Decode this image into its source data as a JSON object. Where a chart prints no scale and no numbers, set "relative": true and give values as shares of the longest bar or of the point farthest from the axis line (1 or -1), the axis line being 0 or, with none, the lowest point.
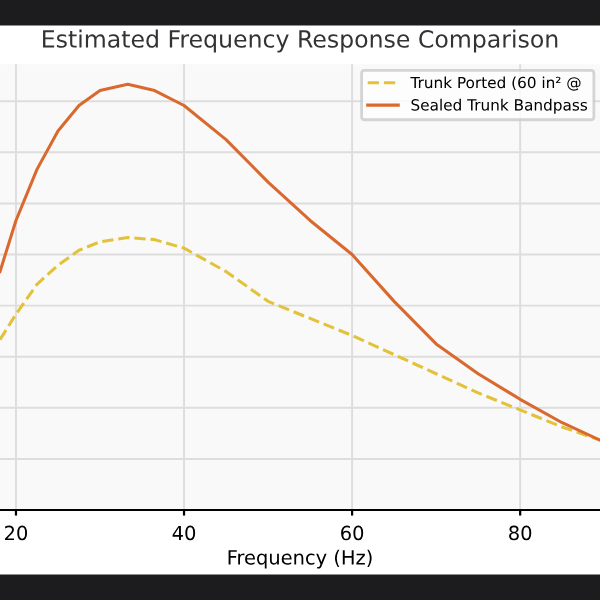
{
  "chart_data": {
    "type": "line",
    "title": "Estimated Frequency Response Comparison",
    "xlabel": "Frequency (Hz)",
    "relative": true,
    "xlim": [
      18.1,
      89.5
    ],
    "xticks": [
      20,
      40,
      60,
      80
    ],
    "tick_labels": "x",
    "grid": true,
    "legend": "top right",
    "series": [
      {
        "name": "Trunk Ported (60 in² @",
        "color": "#e2c23a",
        "line_style": "dashed",
        "x": [
          18.1,
          20,
          22.5,
          25,
          27.5,
          30,
          33.3,
          36.5,
          40,
          45,
          50,
          55,
          60,
          65,
          70,
          75,
          80,
          85,
          89.5
        ],
        "values": [
          0.4,
          0.46,
          0.53,
          0.575,
          0.61,
          0.63,
          0.64,
          0.635,
          0.615,
          0.56,
          0.49,
          0.45,
          0.41,
          0.365,
          0.32,
          0.275,
          0.235,
          0.195,
          0.164
        ]
      },
      {
        "name": "Sealed Trunk Bandpass",
        "color": "#d9692e",
        "line_style": "solid",
        "x": [
          18.1,
          20,
          22.5,
          25,
          27.5,
          30,
          33.3,
          36.5,
          40,
          45,
          50,
          55,
          60,
          65,
          70,
          75,
          80,
          85,
          89.5
        ],
        "values": [
          0.56,
          0.68,
          0.8,
          0.89,
          0.95,
          0.985,
          1.0,
          0.985,
          0.95,
          0.87,
          0.77,
          0.68,
          0.6,
          0.49,
          0.39,
          0.32,
          0.26,
          0.205,
          0.164
        ]
      }
    ]
  }
}
